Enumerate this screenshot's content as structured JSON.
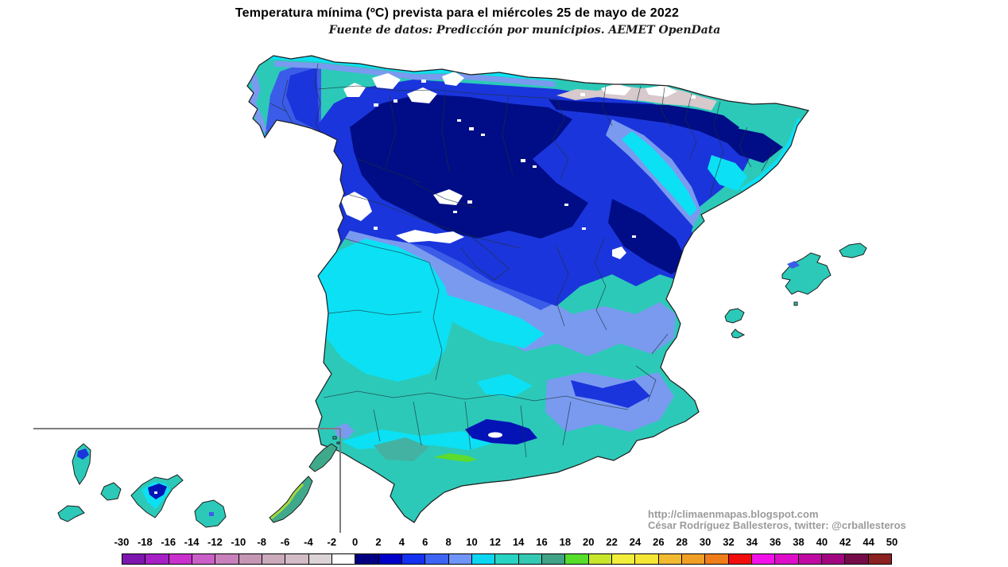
{
  "title": "Temperatura mínima (ºC) prevista para el miércoles 25 de mayo de 2022",
  "subtitle": "Fuente de datos: Predicción por municipios. AEMET OpenData",
  "attribution": {
    "line1": "http://climaenmapas.blogspot.com",
    "line2": "César Rodríguez Ballesteros, twitter: @crballesteros"
  },
  "legend": {
    "unit": "ºC",
    "boundary_labels": [
      "-30",
      "-18",
      "-16",
      "-14",
      "-12",
      "-10",
      "-8",
      "-6",
      "-4",
      "-2",
      "0",
      "2",
      "4",
      "6",
      "8",
      "10",
      "12",
      "14",
      "16",
      "18",
      "20",
      "22",
      "24",
      "26",
      "28",
      "30",
      "32",
      "34",
      "36",
      "38",
      "40",
      "42",
      "44",
      "50"
    ],
    "cell_colors": [
      "#7d16ae",
      "#a620c6",
      "#c930cc",
      "#cb5fc8",
      "#c980bc",
      "#c697b4",
      "#cbaabc",
      "#d2bcc6",
      "#dbd3d6",
      "#ffffff",
      "#010080",
      "#0000c8",
      "#1431f0",
      "#3e64f4",
      "#6f95f8",
      "#0cd6f2",
      "#29d3c3",
      "#34c9b2",
      "#41a287",
      "#55dd2a",
      "#c8e62c",
      "#f2ee3c",
      "#f6e636",
      "#f2ba30",
      "#f09f26",
      "#ee7d1a",
      "#f20c0c",
      "#f211e9",
      "#de0dc9",
      "#c009a2",
      "#a10680",
      "#750b49",
      "#8c2121"
    ]
  },
  "map": {
    "region": "España",
    "inset": "Islas Canarias",
    "colors": {
      "teal": "#2cc9b8",
      "cyan": "#0ce0f4",
      "periwinkle": "#7a9af0",
      "royal": "#3b5ce8",
      "blue": "#1b35dc",
      "navy": "#0413b6",
      "deep_navy": "#000d86",
      "mountain_white": "#ffffff",
      "pyrenees_gray": "#d7c9cc",
      "coastal_green": "#5cdc2c",
      "fuerteventura_green": "#a4d83c",
      "fuerteventura_teal": "#3fa98c",
      "andalucia_dark_teal": "#43b2a2",
      "coastline_black": "#1c1c1c",
      "province_line": "#1d3038",
      "inset_border_gray": "#7d7d7d"
    }
  }
}
